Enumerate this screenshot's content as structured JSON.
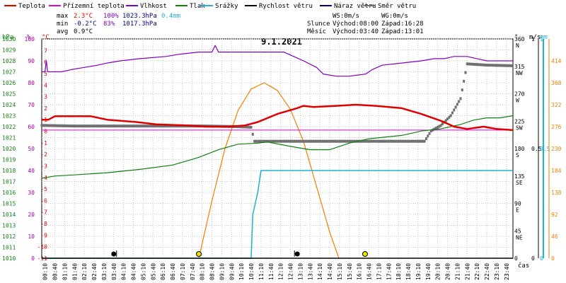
{
  "chart_data": {
    "type": "line",
    "title": "9.1.2021",
    "x_unit_label": "čas",
    "x_range_minutes": [
      0,
      1440
    ],
    "x_ticks": [
      "00:10",
      "00:40",
      "01:10",
      "01:40",
      "02:10",
      "02:40",
      "03:10",
      "03:40",
      "04:10",
      "04:40",
      "05:10",
      "05:40",
      "06:10",
      "06:40",
      "07:10",
      "07:40",
      "08:10",
      "08:40",
      "09:10",
      "09:40",
      "10:10",
      "10:40",
      "11:10",
      "11:40",
      "12:10",
      "12:40",
      "13:10",
      "13:40",
      "14:10",
      "14:40",
      "15:10",
      "15:40",
      "16:10",
      "16:40",
      "17:10",
      "17:40",
      "18:10",
      "18:40",
      "19:10",
      "19:40",
      "20:10",
      "20:40",
      "21:10",
      "21:40",
      "22:10",
      "22:40",
      "23:10",
      "23:40"
    ],
    "legend": [
      {
        "label": "Teplota",
        "color": "#e00000"
      },
      {
        "label": "Přízemní teplota",
        "color": "#e000e0"
      },
      {
        "label": "Vlhkost",
        "color": "#8000c0"
      },
      {
        "label": "Tlak",
        "color": "#108010"
      },
      {
        "label": "Srážky",
        "color": "#20b0d0"
      },
      {
        "label": "Rychlost větru",
        "color": "#000000"
      },
      {
        "label": "Náraz větru",
        "color": "#000080"
      },
      {
        "label": "Směr větru",
        "color": "#707070"
      }
    ],
    "stats": {
      "max": {
        "label": "max",
        "temp": "2.3°C",
        "hum": "100%",
        "press": "1023.3hPa",
        "rain": "0.4mm"
      },
      "min": {
        "label": "min",
        "temp": "-0.2°C",
        "hum": "83%",
        "press": "1017.3hPa"
      },
      "avg": {
        "label": "avg",
        "temp": "0.9°C"
      }
    },
    "wind_info": {
      "ws": "WS:0m/s",
      "wg": "WG:0m/s"
    },
    "sun": {
      "label": "Slunce",
      "rise": "Východ:08:00",
      "set": "Západ:16:28"
    },
    "moon": {
      "label": "Měsíc",
      "rise": "Východ:03:40",
      "set": "Západ:13:01"
    },
    "axes": {
      "hpa": {
        "unit": "hPa",
        "range": [
          1010,
          1030
        ],
        "ticks": [
          1010,
          1011,
          1012,
          1013,
          1014,
          1015,
          1016,
          1017,
          1018,
          1019,
          1020,
          1021,
          1022,
          1023,
          1024,
          1025,
          1026,
          1027,
          1028,
          1029,
          1030
        ]
      },
      "percent": {
        "unit": "%",
        "range": [
          0,
          100
        ],
        "ticks": [
          0,
          10,
          20,
          30,
          40,
          50,
          60,
          70,
          80,
          90,
          100
        ]
      },
      "celsius": {
        "unit": "°C",
        "range": [
          -11,
          8
        ],
        "ticks": [
          -11,
          -10,
          -9,
          -8,
          -7,
          -6,
          -5,
          -4,
          -3,
          -2,
          -1,
          0,
          1,
          2,
          3,
          4,
          5,
          6,
          7
        ]
      },
      "direction": {
        "unit": "°",
        "range": [
          0,
          360
        ],
        "ticks": [
          {
            "v": 0,
            "n": "0",
            "d": ""
          },
          {
            "v": 45,
            "n": "45",
            "d": "NE"
          },
          {
            "v": 90,
            "n": "90",
            "d": "E"
          },
          {
            "v": 135,
            "n": "135",
            "d": "SE"
          },
          {
            "v": 180,
            "n": "180",
            "d": "S"
          },
          {
            "v": 225,
            "n": "225",
            "d": "SW"
          },
          {
            "v": 270,
            "n": "270",
            "d": "W"
          },
          {
            "v": 315,
            "n": "315",
            "d": "NW"
          },
          {
            "v": 360,
            "n": "360",
            "d": "N"
          }
        ]
      },
      "ms": {
        "unit": "m/s",
        "range": [
          0,
          1
        ],
        "ticks": [
          {
            "v": 0,
            "l": "0"
          },
          {
            "v": 0.5,
            "l": "0.5"
          },
          {
            "v": 1,
            "l": "1"
          }
        ]
      },
      "mm": {
        "unit": "mm",
        "range": [
          0,
          1
        ],
        "ticks": [
          {
            "v": 0,
            "l": "0"
          },
          {
            "v": 0.5,
            "l": "0.5"
          },
          {
            "v": 1,
            "l": "1"
          }
        ]
      },
      "sun_elev": {
        "unit": "",
        "range": [
          0,
          460
        ],
        "ticks": [
          0,
          46,
          92,
          138,
          184,
          230,
          276,
          322,
          368,
          414
        ]
      }
    },
    "series": {
      "temperature": {
        "name": "Teplota",
        "unit": "°C",
        "points": [
          [
            0,
            1.0
          ],
          [
            20,
            1.0
          ],
          [
            40,
            1.3
          ],
          [
            150,
            1.3
          ],
          [
            200,
            1.0
          ],
          [
            290,
            0.8
          ],
          [
            350,
            0.6
          ],
          [
            450,
            0.5
          ],
          [
            500,
            0.4
          ],
          [
            570,
            0.4
          ],
          [
            620,
            0.5
          ],
          [
            660,
            0.8
          ],
          [
            720,
            1.5
          ],
          [
            780,
            2.0
          ],
          [
            800,
            2.2
          ],
          [
            830,
            2.1
          ],
          [
            900,
            2.2
          ],
          [
            960,
            2.3
          ],
          [
            1020,
            2.2
          ],
          [
            1100,
            2.0
          ],
          [
            1160,
            1.5
          ],
          [
            1220,
            0.9
          ],
          [
            1260,
            0.4
          ],
          [
            1300,
            0.2
          ],
          [
            1350,
            0.4
          ],
          [
            1390,
            0.2
          ],
          [
            1440,
            0.1
          ]
        ]
      },
      "ground_temperature": {
        "name": "Přízemní teplota",
        "unit": "°C",
        "points": [
          [
            0,
            0.1
          ],
          [
            1440,
            0.1
          ]
        ]
      },
      "humidity": {
        "name": "Vlhkost",
        "unit": "%",
        "points": [
          [
            0,
            85
          ],
          [
            10,
            85
          ],
          [
            14,
            90
          ],
          [
            18,
            85
          ],
          [
            60,
            85
          ],
          [
            90,
            86
          ],
          [
            130,
            87
          ],
          [
            170,
            88
          ],
          [
            200,
            89
          ],
          [
            240,
            90
          ],
          [
            300,
            91
          ],
          [
            380,
            92
          ],
          [
            420,
            93
          ],
          [
            480,
            94
          ],
          [
            520,
            94
          ],
          [
            530,
            97
          ],
          [
            540,
            94
          ],
          [
            570,
            94
          ],
          [
            620,
            94
          ],
          [
            700,
            94
          ],
          [
            740,
            94
          ],
          [
            770,
            92
          ],
          [
            800,
            90
          ],
          [
            840,
            87
          ],
          [
            860,
            84
          ],
          [
            900,
            83
          ],
          [
            940,
            83
          ],
          [
            990,
            84
          ],
          [
            1010,
            86
          ],
          [
            1040,
            88
          ],
          [
            1100,
            89
          ],
          [
            1160,
            90
          ],
          [
            1200,
            91
          ],
          [
            1230,
            91
          ],
          [
            1260,
            92
          ],
          [
            1300,
            92
          ],
          [
            1330,
            91
          ],
          [
            1360,
            90
          ],
          [
            1440,
            90
          ]
        ]
      },
      "pressure": {
        "name": "Tlak",
        "unit": "hPa",
        "points": [
          [
            0,
            1017.3
          ],
          [
            40,
            1017.5
          ],
          [
            100,
            1017.6
          ],
          [
            200,
            1017.8
          ],
          [
            300,
            1018.1
          ],
          [
            400,
            1018.5
          ],
          [
            480,
            1019.2
          ],
          [
            540,
            1019.9
          ],
          [
            600,
            1020.4
          ],
          [
            660,
            1020.5
          ],
          [
            690,
            1020.6
          ],
          [
            760,
            1020.2
          ],
          [
            820,
            1019.9
          ],
          [
            880,
            1019.9
          ],
          [
            940,
            1020.5
          ],
          [
            1000,
            1020.9
          ],
          [
            1100,
            1021.2
          ],
          [
            1160,
            1021.6
          ],
          [
            1220,
            1021.8
          ],
          [
            1280,
            1022.2
          ],
          [
            1320,
            1022.6
          ],
          [
            1360,
            1022.8
          ],
          [
            1400,
            1022.8
          ],
          [
            1440,
            1023.0
          ]
        ]
      },
      "rain_total": {
        "name": "Srážky",
        "unit": "mm",
        "points": [
          [
            0,
            0
          ],
          [
            640,
            0
          ],
          [
            645,
            0.2
          ],
          [
            660,
            0.3
          ],
          [
            670,
            0.4
          ],
          [
            680,
            0.4
          ],
          [
            1440,
            0.4
          ]
        ]
      },
      "wind_speed": {
        "name": "Rychlost větru",
        "unit": "m/s",
        "points": [
          [
            0,
            0
          ],
          [
            1440,
            0
          ]
        ]
      },
      "wind_gust": {
        "name": "Náraz větru",
        "unit": "m/s",
        "points": [
          [
            0,
            0
          ],
          [
            1440,
            0
          ]
        ]
      },
      "wind_direction": {
        "name": "Směr větru",
        "unit": "°",
        "points": [
          [
            0,
            218
          ],
          [
            100,
            217
          ],
          [
            200,
            217
          ],
          [
            300,
            217
          ],
          [
            400,
            217
          ],
          [
            500,
            217
          ],
          [
            600,
            216
          ],
          [
            640,
            215
          ],
          [
            650,
            192
          ],
          [
            800,
            192
          ],
          [
            900,
            192
          ],
          [
            1000,
            192
          ],
          [
            1100,
            192
          ],
          [
            1170,
            192
          ],
          [
            1190,
            209
          ],
          [
            1220,
            218
          ],
          [
            1250,
            234
          ],
          [
            1265,
            248
          ],
          [
            1280,
            262
          ],
          [
            1300,
            319
          ],
          [
            1360,
            317
          ],
          [
            1440,
            316
          ]
        ]
      },
      "sun_elevation": {
        "name": "",
        "points": [
          [
            480,
            0
          ],
          [
            520,
            120
          ],
          [
            560,
            230
          ],
          [
            600,
            310
          ],
          [
            640,
            355
          ],
          [
            680,
            368
          ],
          [
            720,
            352
          ],
          [
            760,
            312
          ],
          [
            800,
            245
          ],
          [
            840,
            150
          ],
          [
            880,
            55
          ],
          [
            908,
            0
          ]
        ]
      }
    },
    "markers": {
      "sunrise": {
        "min": 480,
        "label": "Slunce východ"
      },
      "sunset": {
        "min": 988,
        "label": "Slunce západ"
      },
      "moonrise": {
        "min": 220
      },
      "moonset": {
        "min": 781
      }
    }
  }
}
